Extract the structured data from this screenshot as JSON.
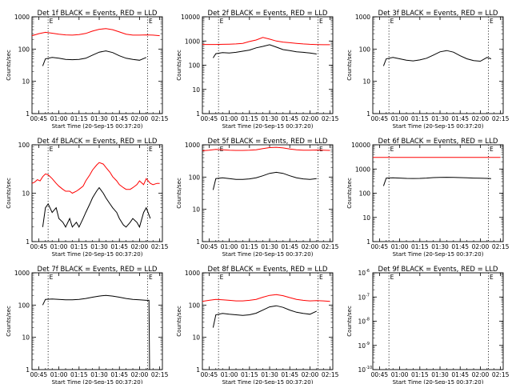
{
  "figure": {
    "x_tick_labels": [
      "00:45",
      "01:00",
      "01:15",
      "01:30",
      "01:45",
      "02:00",
      "02:15"
    ],
    "event_marker_label": "E",
    "colors": {
      "events": "#000000",
      "lld": "#ff0000",
      "axes": "#000000",
      "markers": "#000000"
    }
  },
  "chart_data": [
    {
      "type": "line",
      "title": "Det 1f BLACK = Events, RED = LLD",
      "xlabel": "Start Time (20-Sep-15 00:37:20)",
      "ylabel": "Counts/sec",
      "y_scale": "log",
      "ylim": [
        1,
        1000
      ],
      "y_tick_labels": [
        "1",
        "10",
        "100",
        "1000"
      ],
      "xlim_minutes": [
        40,
        137
      ],
      "event_markers_minutes": [
        52,
        126
      ],
      "series": [
        {
          "color": "#000000",
          "x_minutes": [
            48,
            50,
            55,
            60,
            65,
            70,
            75,
            80,
            85,
            90,
            95,
            100,
            105,
            110,
            115,
            120,
            125
          ],
          "values": [
            30,
            50,
            55,
            52,
            48,
            47,
            48,
            52,
            65,
            80,
            88,
            78,
            62,
            52,
            48,
            45,
            55
          ]
        },
        {
          "color": "#ff0000",
          "x_minutes": [
            40,
            45,
            50,
            55,
            60,
            65,
            70,
            75,
            80,
            85,
            90,
            95,
            100,
            105,
            110,
            115,
            120,
            125,
            130,
            135
          ],
          "values": [
            260,
            300,
            330,
            310,
            290,
            275,
            270,
            280,
            305,
            360,
            410,
            430,
            400,
            340,
            290,
            270,
            270,
            275,
            270,
            260
          ]
        }
      ]
    },
    {
      "type": "line",
      "title": "Det 2f BLACK = Events, RED = LLD",
      "xlabel": "Start Time (20-Sep-15 00:37:20)",
      "ylabel": "Counts/sec",
      "y_scale": "log",
      "ylim": [
        1,
        10000
      ],
      "y_tick_labels": [
        "1",
        "10",
        "100",
        "1000",
        "10000"
      ],
      "xlim_minutes": [
        40,
        137
      ],
      "event_markers_minutes": [
        52,
        126
      ],
      "series": [
        {
          "color": "#000000",
          "x_minutes": [
            48,
            50,
            55,
            60,
            65,
            70,
            75,
            80,
            85,
            90,
            95,
            100,
            105,
            110,
            115,
            120,
            125
          ],
          "values": [
            200,
            300,
            330,
            320,
            340,
            380,
            420,
            520,
            600,
            700,
            560,
            440,
            400,
            360,
            340,
            320,
            290
          ]
        },
        {
          "color": "#ff0000",
          "x_minutes": [
            40,
            45,
            50,
            55,
            60,
            65,
            70,
            75,
            80,
            85,
            90,
            95,
            100,
            105,
            110,
            115,
            120,
            125,
            130,
            135
          ],
          "values": [
            720,
            720,
            720,
            730,
            740,
            760,
            800,
            950,
            1100,
            1400,
            1200,
            1000,
            900,
            850,
            800,
            760,
            730,
            710,
            700,
            700
          ]
        }
      ]
    },
    {
      "type": "line",
      "title": "Det 3f BLACK = Events, RED = LLD",
      "xlabel": "Start Time (20-Sep-15 00:37:20)",
      "ylabel": "Counts/sec",
      "y_scale": "log",
      "ylim": [
        1,
        1000
      ],
      "y_tick_labels": [
        "1",
        "10",
        "100",
        "1000"
      ],
      "xlim_minutes": [
        40,
        137
      ],
      "event_markers_minutes": [
        52,
        126
      ],
      "series": [
        {
          "color": "#000000",
          "x_minutes": [
            48,
            50,
            55,
            60,
            65,
            70,
            75,
            80,
            85,
            90,
            95,
            100,
            105,
            110,
            115,
            120,
            125,
            128
          ],
          "values": [
            30,
            50,
            55,
            50,
            45,
            43,
            46,
            52,
            65,
            82,
            90,
            80,
            62,
            50,
            44,
            42,
            55,
            50
          ]
        }
      ]
    },
    {
      "type": "line",
      "title": "Det 4f BLACK = Events, RED = LLD",
      "xlabel": "Start Time (20-Sep-15 00:37:20)",
      "ylabel": "Counts/sec",
      "y_scale": "log",
      "ylim": [
        1,
        100
      ],
      "y_tick_labels": [
        "1",
        "10",
        "100"
      ],
      "xlim_minutes": [
        40,
        137
      ],
      "event_markers_minutes": [
        52,
        126
      ],
      "series": [
        {
          "color": "#000000",
          "x_minutes": [
            48,
            50,
            52,
            55,
            58,
            60,
            63,
            65,
            68,
            70,
            73,
            75,
            78,
            80,
            83,
            85,
            88,
            90,
            93,
            95,
            98,
            100,
            103,
            105,
            108,
            110,
            113,
            115,
            118,
            120,
            123,
            125,
            128
          ],
          "values": [
            2,
            5,
            6,
            4,
            5,
            3,
            2.5,
            2,
            3,
            2,
            2.5,
            2,
            3,
            4,
            6,
            8,
            11,
            13,
            10,
            8,
            6,
            5,
            4,
            3,
            2.2,
            2,
            2.5,
            3,
            2.5,
            2,
            4,
            5,
            3
          ]
        },
        {
          "color": "#ff0000",
          "x_minutes": [
            40,
            42,
            44,
            46,
            48,
            50,
            52,
            55,
            58,
            60,
            63,
            65,
            68,
            70,
            73,
            75,
            78,
            80,
            83,
            85,
            88,
            90,
            93,
            95,
            98,
            100,
            103,
            105,
            108,
            110,
            113,
            115,
            118,
            120,
            123,
            125,
            128,
            130,
            133,
            135
          ],
          "values": [
            16,
            17,
            19,
            18,
            22,
            25,
            24,
            20,
            16,
            14,
            12,
            11,
            11,
            10,
            11,
            12,
            14,
            18,
            24,
            30,
            38,
            43,
            40,
            34,
            27,
            22,
            18,
            15,
            13,
            12,
            12,
            13,
            15,
            18,
            15,
            20,
            16,
            15,
            16,
            16
          ]
        }
      ]
    },
    {
      "type": "line",
      "title": "Det 5f BLACK = Events, RED = LLD",
      "xlabel": "Start Time (20-Sep-15 00:37:20)",
      "ylabel": "Counts/sec",
      "y_scale": "log",
      "ylim": [
        1,
        1000
      ],
      "y_tick_labels": [
        "1",
        "10",
        "100",
        "1000"
      ],
      "xlim_minutes": [
        40,
        137
      ],
      "event_markers_minutes": [
        52,
        126
      ],
      "series": [
        {
          "color": "#000000",
          "x_minutes": [
            48,
            50,
            55,
            60,
            65,
            70,
            75,
            80,
            85,
            90,
            95,
            100,
            105,
            110,
            115,
            120,
            125
          ],
          "values": [
            40,
            90,
            95,
            90,
            85,
            85,
            88,
            95,
            110,
            130,
            140,
            130,
            110,
            95,
            88,
            85,
            90
          ]
        },
        {
          "color": "#ff0000",
          "x_minutes": [
            40,
            45,
            50,
            55,
            60,
            65,
            70,
            75,
            80,
            85,
            90,
            95,
            100,
            105,
            110,
            115,
            120,
            125,
            130,
            135
          ],
          "values": [
            650,
            680,
            720,
            700,
            680,
            670,
            670,
            680,
            700,
            760,
            820,
            840,
            800,
            740,
            700,
            680,
            680,
            690,
            680,
            670
          ]
        }
      ]
    },
    {
      "type": "line",
      "title": "Det 6f BLACK = Events, RED = LLD",
      "xlabel": "Start Time (20-Sep-15 00:37:20)",
      "ylabel": "Counts/sec",
      "y_scale": "log",
      "ylim": [
        1,
        10000
      ],
      "y_tick_labels": [
        "1",
        "10",
        "100",
        "1000",
        "10000"
      ],
      "xlim_minutes": [
        40,
        137
      ],
      "event_markers_minutes": [
        52,
        126
      ],
      "series": [
        {
          "color": "#000000",
          "x_minutes": [
            48,
            50,
            55,
            60,
            65,
            70,
            75,
            80,
            85,
            90,
            95,
            100,
            105,
            110,
            115,
            120,
            125,
            128
          ],
          "values": [
            200,
            420,
            430,
            420,
            410,
            405,
            410,
            420,
            440,
            450,
            455,
            450,
            440,
            430,
            420,
            415,
            410,
            400
          ]
        },
        {
          "color": "#ff0000",
          "x_minutes": [
            40,
            60,
            80,
            100,
            120,
            135
          ],
          "values": [
            3000,
            3000,
            3000,
            3000,
            3000,
            3000
          ]
        }
      ]
    },
    {
      "type": "line",
      "title": "Det 7f BLACK = Events, RED = LLD",
      "xlabel": "Start Time (20-Sep-15 00:37:20)",
      "ylabel": "Counts/sec",
      "y_scale": "log",
      "ylim": [
        1,
        1000
      ],
      "y_tick_labels": [
        "1",
        "10",
        "100",
        "1000"
      ],
      "xlim_minutes": [
        40,
        137
      ],
      "event_markers_minutes": [
        52,
        126
      ],
      "series": [
        {
          "color": "#000000",
          "x_minutes": [
            48,
            50,
            55,
            60,
            65,
            70,
            75,
            80,
            85,
            90,
            95,
            100,
            105,
            110,
            115,
            120,
            125,
            127,
            127.5
          ],
          "values": [
            100,
            150,
            155,
            150,
            145,
            145,
            150,
            160,
            175,
            190,
            200,
            190,
            175,
            160,
            150,
            145,
            140,
            140,
            1
          ]
        }
      ]
    },
    {
      "type": "line",
      "title": "Det 8f BLACK = Events, RED = LLD",
      "xlabel": "Start Time (20-Sep-15 00:37:20)",
      "ylabel": "Counts/sec",
      "y_scale": "log",
      "ylim": [
        1,
        1000
      ],
      "y_tick_labels": [
        "1",
        "10",
        "100",
        "1000"
      ],
      "xlim_minutes": [
        40,
        137
      ],
      "event_markers_minutes": [
        52,
        126
      ],
      "series": [
        {
          "color": "#000000",
          "x_minutes": [
            48,
            50,
            55,
            60,
            65,
            70,
            75,
            80,
            85,
            90,
            95,
            100,
            105,
            110,
            115,
            120,
            125
          ],
          "values": [
            20,
            50,
            55,
            52,
            50,
            48,
            50,
            56,
            70,
            88,
            95,
            85,
            70,
            60,
            55,
            52,
            65
          ]
        },
        {
          "color": "#ff0000",
          "x_minutes": [
            40,
            45,
            50,
            55,
            60,
            65,
            70,
            75,
            80,
            85,
            90,
            95,
            100,
            105,
            110,
            115,
            120,
            125,
            130,
            135
          ],
          "values": [
            130,
            140,
            150,
            145,
            140,
            135,
            135,
            140,
            150,
            175,
            200,
            210,
            195,
            170,
            150,
            140,
            135,
            138,
            135,
            130
          ]
        }
      ]
    },
    {
      "type": "line",
      "title": "Det 9f BLACK = Events, RED = LLD",
      "xlabel": "Start Time (20-Sep-15 00:37:20)",
      "ylabel": "Counts/sec",
      "y_scale": "log",
      "ylim": [
        1e-10,
        1e-06
      ],
      "y_tick_labels": [
        {
          "base": "10",
          "exp": "-10"
        },
        {
          "base": "10",
          "exp": "-9"
        },
        {
          "base": "10",
          "exp": "-8"
        },
        {
          "base": "10",
          "exp": "-7"
        },
        {
          "base": "10",
          "exp": "-6"
        }
      ],
      "xlim_minutes": [
        40,
        137
      ],
      "event_markers_minutes": [
        52,
        126
      ],
      "series": []
    }
  ]
}
